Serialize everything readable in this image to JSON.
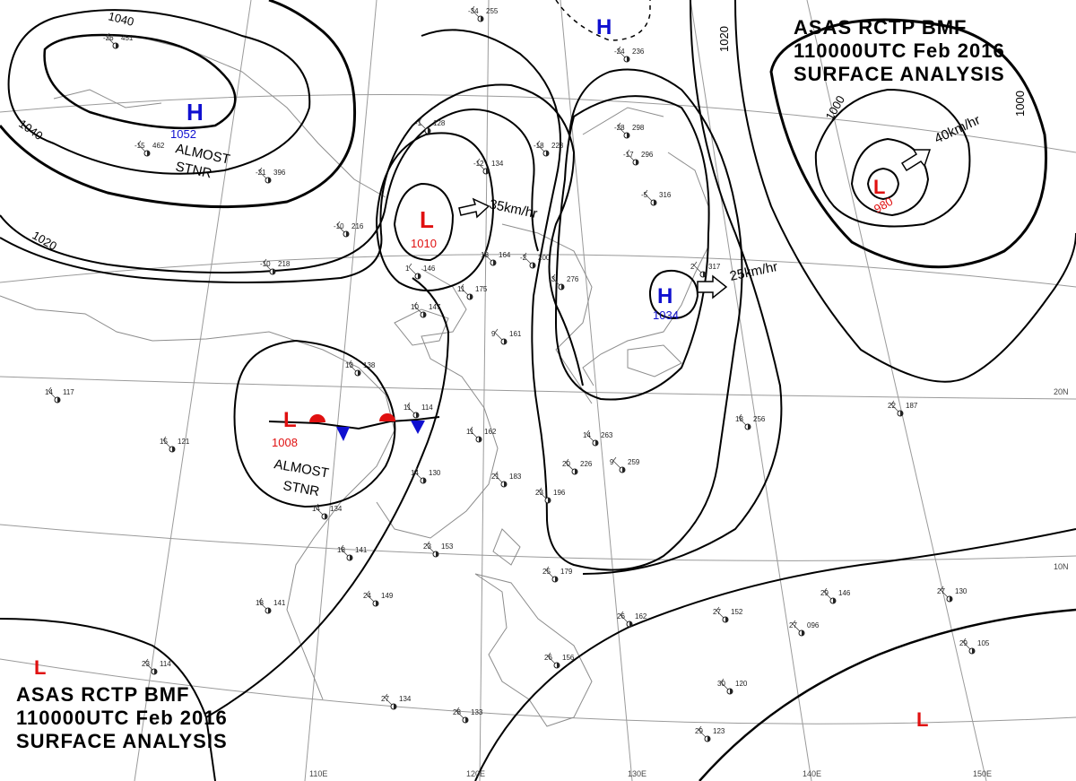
{
  "header": {
    "line1": "ASAS    RCTP    BMF",
    "line2": "110000UTC    Feb    2016",
    "line3": "SURFACE  ANALYSIS"
  },
  "isobars": {
    "i1040a": "1040",
    "i1040b": "1040",
    "i1020a": "1020",
    "i1020b": "1020",
    "i1000a": "1000",
    "i1000b": "1000"
  },
  "systems": [
    {
      "type": "H",
      "pressure": "1052",
      "color": "#1010d0"
    },
    {
      "type": "L",
      "pressure": "1010",
      "color": "#e01010"
    },
    {
      "type": "L",
      "pressure": "1008",
      "color": "#e01010"
    },
    {
      "type": "H",
      "pressure": "1034",
      "color": "#1010d0"
    },
    {
      "type": "L",
      "pressure": "980",
      "color": "#e01010"
    },
    {
      "type": "H",
      "pressure": "",
      "color": "#1010d0"
    },
    {
      "type": "L",
      "pressure": "",
      "color": "#e01010"
    },
    {
      "type": "L",
      "pressure": "",
      "color": "#e01010"
    }
  ],
  "motion": {
    "m1": "35km/hr",
    "m2": "25km/hr",
    "m3": "40km/hr"
  },
  "notes": {
    "stnr1a": "ALMOST",
    "stnr1b": "STNR",
    "stnr2a": "ALMOST",
    "stnr2b": "STNR"
  },
  "grid_labels": {
    "lat20": "20N",
    "lat10": "10N",
    "lon110": "110E",
    "lon120": "120E",
    "lon130": "130E",
    "lon140": "140E",
    "lon150": "150E"
  },
  "stations": [
    {
      "t": "-34",
      "p": "255"
    },
    {
      "t": "-24",
      "p": "236"
    },
    {
      "t": "-26",
      "p": "451"
    },
    {
      "t": "-15",
      "p": "462"
    },
    {
      "t": "-21",
      "p": "396"
    },
    {
      "t": "-10",
      "p": "216"
    },
    {
      "t": "-10",
      "p": "218"
    },
    {
      "t": "-1",
      "p": "128"
    },
    {
      "t": "-12",
      "p": "134"
    },
    {
      "t": "-18",
      "p": "223"
    },
    {
      "t": "-28",
      "p": "298"
    },
    {
      "t": "-17",
      "p": "296"
    },
    {
      "t": "-5",
      "p": "316"
    },
    {
      "t": "2",
      "p": "317"
    },
    {
      "t": "11",
      "p": "175"
    },
    {
      "t": "10",
      "p": "147"
    },
    {
      "t": "9",
      "p": "161"
    },
    {
      "t": "11",
      "p": "162"
    },
    {
      "t": "14",
      "p": "263"
    },
    {
      "t": "18",
      "p": "256"
    },
    {
      "t": "22",
      "p": "187"
    },
    {
      "t": "14",
      "p": "117"
    },
    {
      "t": "15",
      "p": "121"
    },
    {
      "t": "13",
      "p": "138"
    },
    {
      "t": "11",
      "p": "114"
    },
    {
      "t": "14",
      "p": "130"
    },
    {
      "t": "21",
      "p": "183"
    },
    {
      "t": "23",
      "p": "196"
    },
    {
      "t": "20",
      "p": "226"
    },
    {
      "t": "9",
      "p": "259"
    },
    {
      "t": "14",
      "p": "134"
    },
    {
      "t": "18",
      "p": "141"
    },
    {
      "t": "23",
      "p": "153"
    },
    {
      "t": "25",
      "p": "179"
    },
    {
      "t": "24",
      "p": "149"
    },
    {
      "t": "18",
      "p": "141"
    },
    {
      "t": "23",
      "p": "114"
    },
    {
      "t": "27",
      "p": "134"
    },
    {
      "t": "28",
      "p": "133"
    },
    {
      "t": "26",
      "p": "156"
    },
    {
      "t": "29",
      "p": "146"
    },
    {
      "t": "27",
      "p": "130"
    },
    {
      "t": "29",
      "p": "105"
    },
    {
      "t": "30",
      "p": "120"
    },
    {
      "t": "29",
      "p": "123"
    },
    {
      "t": "27",
      "p": "152"
    },
    {
      "t": "27",
      "p": "096"
    },
    {
      "t": "26",
      "p": "162"
    },
    {
      "t": "18",
      "p": "164"
    },
    {
      "t": "-2",
      "p": "200"
    },
    {
      "t": "-3",
      "p": "276"
    },
    {
      "t": "1",
      "p": "146"
    }
  ]
}
